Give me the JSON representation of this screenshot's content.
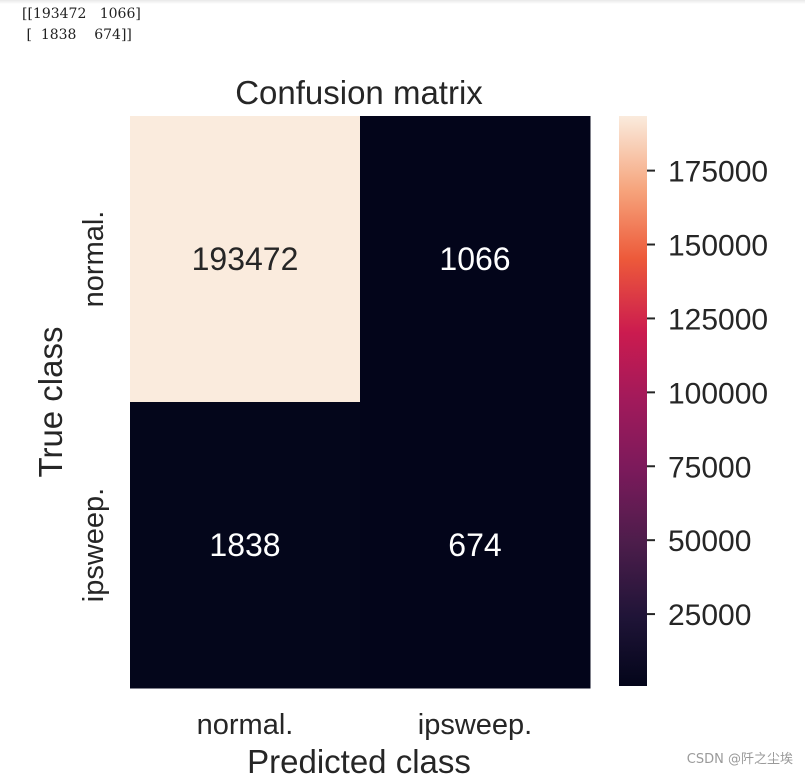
{
  "console": {
    "lines": [
      "[[193472   1066]",
      " [  1838    674]]"
    ]
  },
  "chart_data": {
    "type": "heatmap",
    "title": "Confusion matrix",
    "xlabel": "Predicted class",
    "ylabel": "True class",
    "x_categories": [
      "normal.",
      "ipsweep."
    ],
    "y_categories": [
      "normal.",
      "ipsweep."
    ],
    "values": [
      [
        193472,
        1066
      ],
      [
        1838,
        674
      ]
    ],
    "colorbar": {
      "ticks": [
        25000,
        50000,
        75000,
        100000,
        125000,
        150000,
        175000
      ],
      "range": [
        674,
        193472
      ],
      "colormap": "rocket"
    },
    "annotation_colors": {
      "light_cell": "#262626",
      "dark_cell": "#ffffff"
    }
  },
  "watermark": "CSDN @阡之尘埃"
}
